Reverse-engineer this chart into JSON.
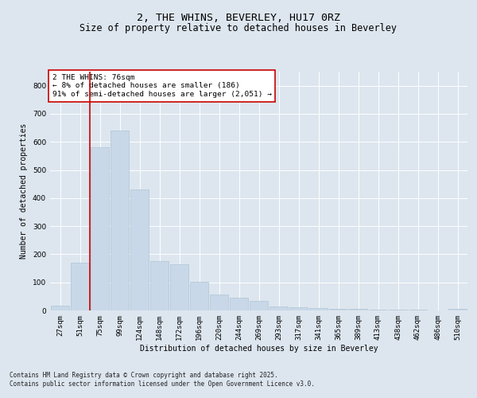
{
  "title": "2, THE WHINS, BEVERLEY, HU17 0RZ",
  "subtitle": "Size of property relative to detached houses in Beverley",
  "xlabel": "Distribution of detached houses by size in Beverley",
  "ylabel": "Number of detached properties",
  "categories": [
    "27sqm",
    "51sqm",
    "75sqm",
    "99sqm",
    "124sqm",
    "148sqm",
    "172sqm",
    "196sqm",
    "220sqm",
    "244sqm",
    "269sqm",
    "293sqm",
    "317sqm",
    "341sqm",
    "365sqm",
    "389sqm",
    "413sqm",
    "438sqm",
    "462sqm",
    "486sqm",
    "510sqm"
  ],
  "values": [
    18,
    170,
    580,
    640,
    430,
    175,
    165,
    103,
    58,
    45,
    35,
    15,
    12,
    8,
    6,
    5,
    4,
    3,
    2,
    1,
    5
  ],
  "bar_color": "#c8d8e8",
  "bar_edge_color": "#a8bece",
  "vline_color": "#cc0000",
  "annotation_text": "2 THE WHINS: 76sqm\n← 8% of detached houses are smaller (186)\n91% of semi-detached houses are larger (2,051) →",
  "annotation_box_color": "#ffffff",
  "annotation_box_edge": "#cc0000",
  "bg_color": "#dde6ef",
  "plot_bg_color": "#dde6ef",
  "grid_color": "#ffffff",
  "footer": "Contains HM Land Registry data © Crown copyright and database right 2025.\nContains public sector information licensed under the Open Government Licence v3.0.",
  "ylim": [
    0,
    850
  ],
  "yticks": [
    0,
    100,
    200,
    300,
    400,
    500,
    600,
    700,
    800
  ],
  "title_fontsize": 9.5,
  "subtitle_fontsize": 8.5,
  "axis_label_fontsize": 7,
  "tick_fontsize": 6.5,
  "annotation_fontsize": 6.8,
  "footer_fontsize": 5.5
}
